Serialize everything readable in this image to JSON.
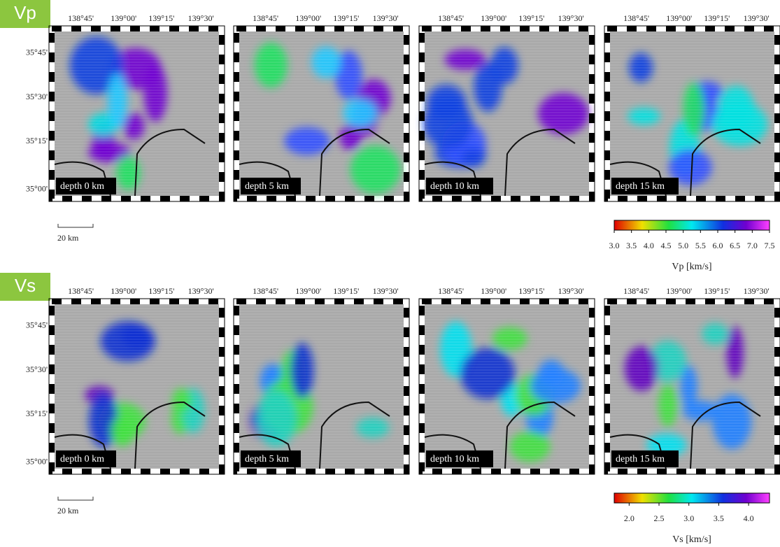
{
  "lon_ticks": [
    "138°45'",
    "139°00'",
    "139°15'",
    "139°30'"
  ],
  "lat_ticks": [
    "35°45'",
    "35°30'",
    "35°15'",
    "35°00'"
  ],
  "scale_bar": "20 km",
  "rows": [
    {
      "label": "Vp",
      "panels": [
        {
          "depth": "depth 0 km"
        },
        {
          "depth": "depth 5 km"
        },
        {
          "depth": "depth 10 km"
        },
        {
          "depth": "depth 15 km"
        }
      ],
      "colorbar": {
        "title": "Vp [km/s]",
        "lim": [
          3.0,
          7.5
        ],
        "ticks": [
          {
            "value": 3.0,
            "label": "3.0"
          },
          {
            "value": 3.5,
            "label": "3.5"
          },
          {
            "value": 4.0,
            "label": "4.0"
          },
          {
            "value": 4.5,
            "label": "4.5"
          },
          {
            "value": 5.0,
            "label": "5.0"
          },
          {
            "value": 5.5,
            "label": "5.5"
          },
          {
            "value": 6.0,
            "label": "6.0"
          },
          {
            "value": 6.5,
            "label": "6.5"
          },
          {
            "value": 7.0,
            "label": "7.0"
          },
          {
            "value": 7.5,
            "label": "7.5"
          }
        ]
      }
    },
    {
      "label": "Vs",
      "panels": [
        {
          "depth": "depth 0 km"
        },
        {
          "depth": "depth 5 km"
        },
        {
          "depth": "depth 10 km"
        },
        {
          "depth": "depth 15 km"
        }
      ],
      "colorbar": {
        "title": "Vs [km/s]",
        "lim": [
          1.75,
          4.35
        ],
        "ticks": [
          {
            "value": 2.0,
            "label": "2.0"
          },
          {
            "value": 2.5,
            "label": "2.5"
          },
          {
            "value": 3.0,
            "label": "3.0"
          },
          {
            "value": 3.5,
            "label": "3.5"
          },
          {
            "value": 4.0,
            "label": "4.0"
          }
        ]
      }
    }
  ]
}
